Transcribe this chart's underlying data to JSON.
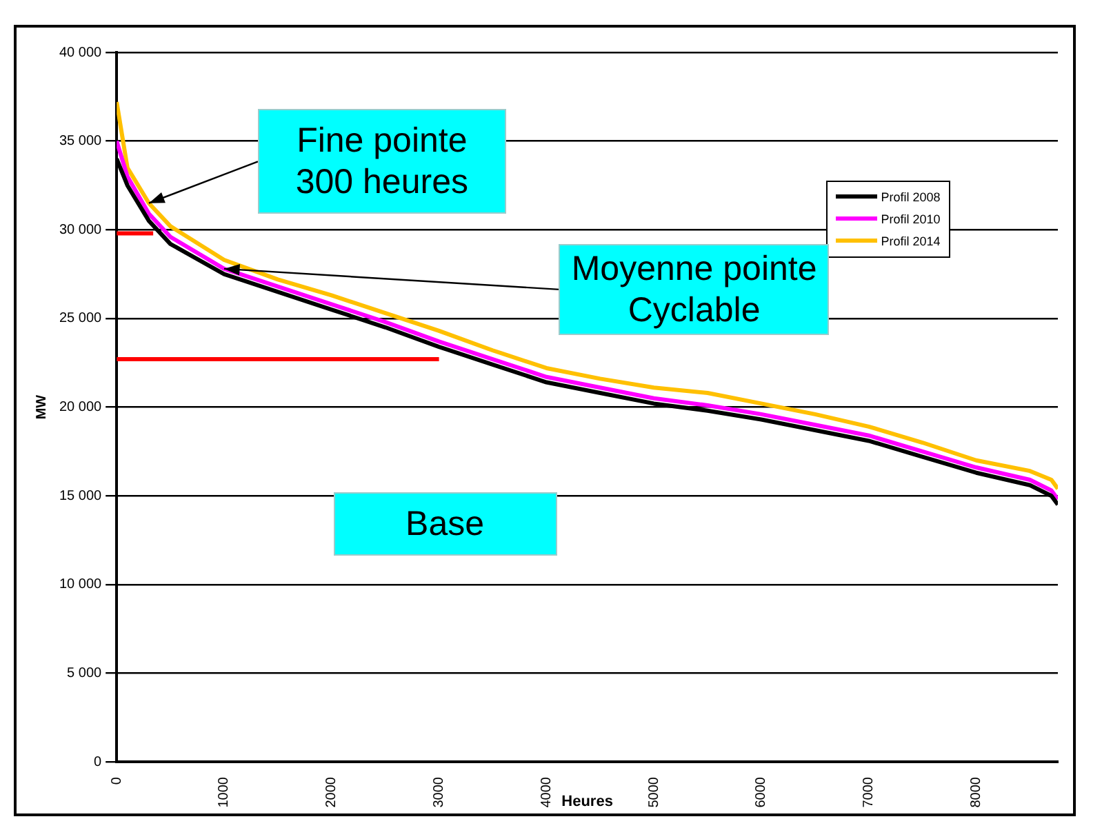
{
  "chart_data": {
    "type": "line",
    "xlabel": "Heures",
    "ylabel": "MW",
    "xlim": [
      0,
      8760
    ],
    "xticks": [
      0,
      1000,
      2000,
      3000,
      4000,
      5000,
      6000,
      7000,
      8000
    ],
    "ylim": [
      0,
      40000
    ],
    "yticks": [
      {
        "value": 0,
        "label": "0"
      },
      {
        "value": 5000,
        "label": "5 000"
      },
      {
        "value": 10000,
        "label": "10 000"
      },
      {
        "value": 15000,
        "label": "15 000"
      },
      {
        "value": 20000,
        "label": "20 000"
      },
      {
        "value": 25000,
        "label": "25 000"
      },
      {
        "value": 30000,
        "label": "30 000"
      },
      {
        "value": 35000,
        "label": "35 000"
      },
      {
        "value": 40000,
        "label": "40 000"
      }
    ],
    "grid": "y",
    "legend": "top right",
    "marker": "none",
    "line_style": "solid",
    "x": [
      0,
      100,
      300,
      500,
      1000,
      1500,
      2000,
      2500,
      3000,
      3500,
      4000,
      4500,
      5000,
      5500,
      6000,
      6500,
      7000,
      7500,
      8000,
      8500,
      8700,
      8760
    ],
    "series": [
      {
        "name": "Profil 2008",
        "color": "#000000",
        "values": [
          34000,
          32500,
          30500,
          29200,
          27500,
          26500,
          25500,
          24500,
          23400,
          22400,
          21400,
          20800,
          20200,
          19800,
          19300,
          18700,
          18100,
          17200,
          16300,
          15600,
          15000,
          14500
        ]
      },
      {
        "name": "Profil 2010",
        "color": "#ff00ff",
        "values": [
          35000,
          33000,
          30900,
          29600,
          27800,
          26800,
          25800,
          24800,
          23700,
          22700,
          21700,
          21100,
          20500,
          20100,
          19600,
          19000,
          18400,
          17500,
          16600,
          15900,
          15300,
          14800
        ]
      },
      {
        "name": "Profil 2014",
        "color": "#ffc000",
        "values": [
          37200,
          33500,
          31500,
          30200,
          28300,
          27200,
          26300,
          25300,
          24300,
          23200,
          22200,
          21600,
          21100,
          20800,
          20200,
          19600,
          18900,
          18000,
          17000,
          16400,
          15900,
          15400
        ]
      },
      {
        "type": "line",
        "color": "#ff0000",
        "x": [
          0,
          340
        ],
        "values": [
          29800,
          29800
        ]
      },
      {
        "type": "line",
        "color": "#ff0000",
        "x": [
          0,
          3000
        ],
        "values": [
          22700,
          22700
        ]
      }
    ],
    "annotations": [
      {
        "text": "Fine pointe\n300 heures",
        "x": 300,
        "y": 31500
      },
      {
        "text": "Moyenne pointe\nCyclable",
        "x": 1000,
        "y": 27800
      },
      "Base"
    ]
  }
}
